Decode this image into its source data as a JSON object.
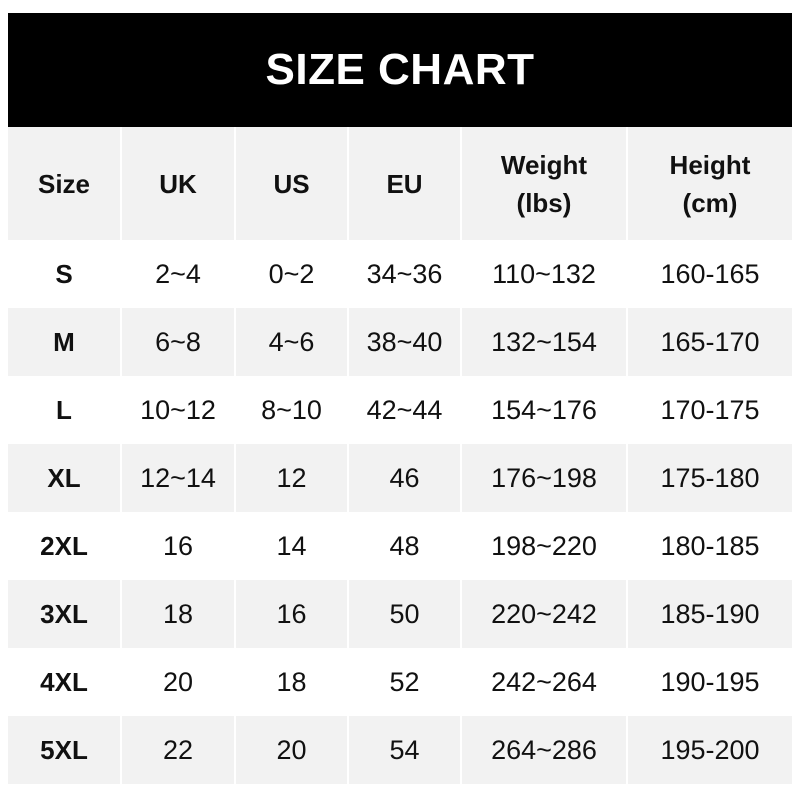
{
  "title": "SIZE CHART",
  "headers": [
    "Size",
    "UK",
    "US",
    "EU",
    "Weight\n(lbs)",
    "Height\n(cm)"
  ],
  "rows": [
    [
      "S",
      "2~4",
      "0~2",
      "34~36",
      "110~132",
      "160-165"
    ],
    [
      "M",
      "6~8",
      "4~6",
      "38~40",
      "132~154",
      "165-170"
    ],
    [
      "L",
      "10~12",
      "8~10",
      "42~44",
      "154~176",
      "170-175"
    ],
    [
      "XL",
      "12~14",
      "12",
      "46",
      "176~198",
      "175-180"
    ],
    [
      "2XL",
      "16",
      "14",
      "48",
      "198~220",
      "180-185"
    ],
    [
      "3XL",
      "18",
      "16",
      "50",
      "220~242",
      "185-190"
    ],
    [
      "4XL",
      "20",
      "18",
      "52",
      "242~264",
      "190-195"
    ],
    [
      "5XL",
      "22",
      "20",
      "54",
      "264~286",
      "195-200"
    ]
  ],
  "colors": {
    "header_bg": "#000000",
    "alt_row_bg": "#f2f2f2"
  }
}
